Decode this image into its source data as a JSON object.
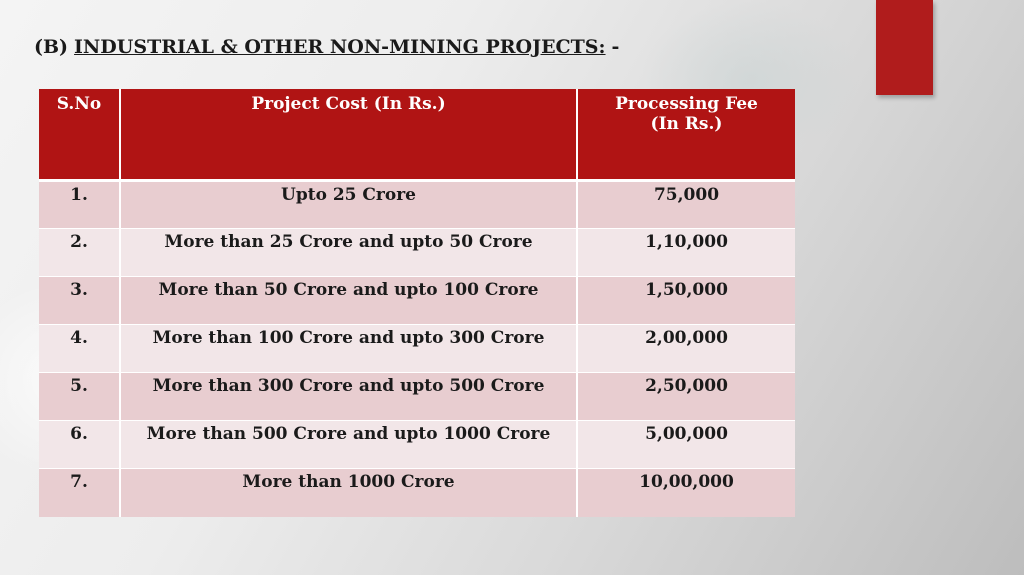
{
  "slide": {
    "title_prefix": "(B)",
    "title_main": "INDUSTRIAL & OTHER NON-MINING PROJECTS:",
    "title_suffix": "-",
    "accent_color": "#b01c1c"
  },
  "table": {
    "header_color": "#b01414",
    "headers": {
      "sno": "S.No",
      "cost": "Project Cost (In Rs.)",
      "fee_line1": "Processing Fee",
      "fee_line2": "(In Rs.)"
    },
    "rows": [
      {
        "sno": "1.",
        "cost": "Upto 25 Crore",
        "fee": "75,000"
      },
      {
        "sno": "2.",
        "cost": "More than 25 Crore and upto 50 Crore",
        "fee": "1,10,000"
      },
      {
        "sno": "3.",
        "cost": "More than 50 Crore and upto 100 Crore",
        "fee": "1,50,000"
      },
      {
        "sno": "4.",
        "cost": "More than 100 Crore and upto 300 Crore",
        "fee": "2,00,000"
      },
      {
        "sno": "5.",
        "cost": "More than 300 Crore and upto 500 Crore",
        "fee": "2,50,000"
      },
      {
        "sno": "6.",
        "cost": "More than 500 Crore and upto 1000 Crore",
        "fee": "5,00,000"
      },
      {
        "sno": "7.",
        "cost": "More than 1000 Crore",
        "fee": "10,00,000"
      }
    ]
  }
}
